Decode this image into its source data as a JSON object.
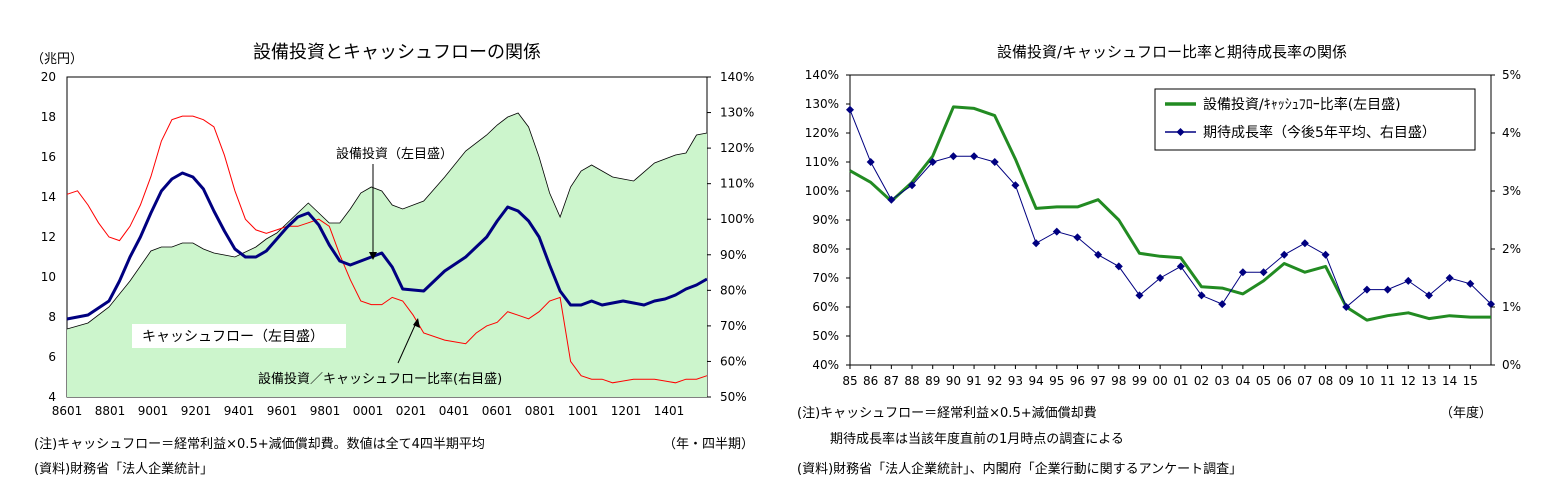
{
  "left": {
    "title": "設備投資とキャッシュフローの関係",
    "left_unit": "（兆円）",
    "note": "(注)キャッシュフロー＝経常利益×0.5+減価償却費。数値は全て4四半期平均",
    "source": "(資料)財務省「法人企業統計」",
    "xaxis_unit": "（年・四半期）",
    "labels": {
      "capex": "設備投資（左目盛）",
      "cashflow": "キャッシュフロー（左目盛）",
      "ratio": "設備投資／キャッシュフロー比率(右目盛)"
    }
  },
  "right": {
    "title": "設備投資/キャッシュフロー比率と期待成長率の関係",
    "note1": "(注)キャッシュフロー＝経常利益×0.5+減価償却費",
    "note2": "期待成長率は当該年度直前の1月時点の調査による",
    "source": "(資料)財務省「法人企業統計」、内閣府「企業行動に関するアンケート調査」",
    "xaxis_unit": "（年度）",
    "legend": {
      "ratio": "設備投資/ｷｬｯｼｭﾌﾛｰ比率(左目盛)",
      "growth": "期待成長率（今後5年平均、右目盛）"
    }
  },
  "chart_data": [
    {
      "type": "area",
      "title": "設備投資とキャッシュフローの関係",
      "x_ticks": [
        "8601",
        "8801",
        "9001",
        "9201",
        "9401",
        "9601",
        "9801",
        "0001",
        "0201",
        "0401",
        "0601",
        "0801",
        "1001",
        "1201",
        "1401"
      ],
      "x_range": [
        1986.0,
        2016.5
      ],
      "ylim_left": [
        4,
        20
      ],
      "y_ticks_left": [
        "20",
        "18",
        "16",
        "14",
        "12",
        "10",
        "8",
        "6",
        "4"
      ],
      "ylim_right": [
        50,
        140
      ],
      "y_ticks_right": [
        "140%",
        "130%",
        "120%",
        "110%",
        "100%",
        "90%",
        "80%",
        "70%",
        "60%",
        "50%"
      ],
      "series": [
        {
          "name": "キャッシュフロー（左目盛）",
          "type": "area",
          "axis": "left",
          "color": "#ccf5cc",
          "x": [
            1986.0,
            1987.0,
            1988.0,
            1989.0,
            1990.0,
            1990.5,
            1991.0,
            1991.5,
            1992.0,
            1992.5,
            1993.0,
            1994.0,
            1995.0,
            1995.5,
            1996.0,
            1997.0,
            1997.5,
            1998.0,
            1998.5,
            1999.0,
            1999.5,
            2000.0,
            2000.5,
            2001.0,
            2001.5,
            2002.0,
            2003.0,
            2004.0,
            2005.0,
            2006.0,
            2006.5,
            2007.0,
            2007.5,
            2008.0,
            2008.5,
            2009.0,
            2009.5,
            2010.0,
            2010.5,
            2011.0,
            2012.0,
            2012.5,
            2013.0,
            2014.0,
            2015.0,
            2015.5,
            2016.0,
            2016.5
          ],
          "values": [
            7.4,
            7.7,
            8.5,
            9.8,
            11.3,
            11.5,
            11.5,
            11.7,
            11.7,
            11.4,
            11.2,
            11.0,
            11.5,
            11.9,
            12.2,
            13.2,
            13.7,
            13.2,
            12.7,
            12.7,
            13.4,
            14.2,
            14.5,
            14.3,
            13.6,
            13.4,
            13.8,
            15.0,
            16.3,
            17.1,
            17.6,
            18.0,
            18.2,
            17.5,
            16.0,
            14.2,
            13.0,
            14.5,
            15.3,
            15.6,
            15.0,
            14.9,
            14.8,
            15.7,
            16.1,
            16.2,
            17.1,
            17.2
          ]
        },
        {
          "name": "設備投資（左目盛）",
          "type": "line",
          "axis": "left",
          "color": "#000080",
          "x": [
            1986.0,
            1987.0,
            1988.0,
            1988.5,
            1989.0,
            1989.5,
            1990.0,
            1990.5,
            1991.0,
            1991.5,
            1992.0,
            1992.5,
            1993.0,
            1993.5,
            1994.0,
            1994.5,
            1995.0,
            1995.5,
            1996.0,
            1996.5,
            1997.0,
            1997.5,
            1998.0,
            1998.5,
            1999.0,
            1999.5,
            2000.0,
            2000.5,
            2001.0,
            2001.5,
            2002.0,
            2003.0,
            2004.0,
            2005.0,
            2005.5,
            2006.0,
            2006.5,
            2007.0,
            2007.5,
            2008.0,
            2008.5,
            2009.0,
            2009.5,
            2010.0,
            2010.5,
            2011.0,
            2011.5,
            2012.0,
            2012.5,
            2013.0,
            2013.5,
            2014.0,
            2014.5,
            2015.0,
            2015.5,
            2016.0,
            2016.5
          ],
          "values": [
            7.9,
            8.1,
            8.8,
            9.8,
            11.0,
            12.0,
            13.2,
            14.3,
            14.9,
            15.2,
            15.0,
            14.4,
            13.3,
            12.3,
            11.4,
            11.0,
            11.0,
            11.3,
            11.9,
            12.5,
            13.0,
            13.2,
            12.6,
            11.6,
            10.8,
            10.6,
            10.8,
            11.0,
            11.2,
            10.5,
            9.4,
            9.3,
            10.3,
            11.0,
            11.5,
            12.0,
            12.8,
            13.5,
            13.3,
            12.8,
            12.0,
            10.6,
            9.3,
            8.6,
            8.6,
            8.8,
            8.6,
            8.7,
            8.8,
            8.7,
            8.6,
            8.8,
            8.9,
            9.1,
            9.4,
            9.6,
            9.9
          ]
        },
        {
          "name": "設備投資／キャッシュフロー比率(右目盛)",
          "type": "line",
          "axis": "right",
          "color": "#ff0000",
          "x": [
            1986.0,
            1986.5,
            1987.0,
            1987.5,
            1988.0,
            1988.5,
            1989.0,
            1989.5,
            1990.0,
            1990.5,
            1991.0,
            1991.5,
            1992.0,
            1992.5,
            1993.0,
            1993.5,
            1994.0,
            1994.5,
            1995.0,
            1995.5,
            1996.0,
            1996.5,
            1997.0,
            1997.5,
            1998.0,
            1998.5,
            1999.0,
            1999.5,
            2000.0,
            2000.5,
            2001.0,
            2001.5,
            2002.0,
            2002.5,
            2003.0,
            2004.0,
            2005.0,
            2005.5,
            2006.0,
            2006.5,
            2007.0,
            2007.5,
            2008.0,
            2008.5,
            2009.0,
            2009.5,
            2010.0,
            2010.5,
            2011.0,
            2011.5,
            2012.0,
            2013.0,
            2014.0,
            2015.0,
            2015.5,
            2016.0,
            2016.5
          ],
          "values": [
            107,
            108,
            104,
            99,
            95,
            94,
            98,
            104,
            112,
            122,
            128,
            129,
            129,
            128,
            126,
            118,
            108,
            100,
            97,
            96,
            97,
            98,
            98,
            99,
            100,
            98,
            90,
            83,
            77,
            76,
            76,
            78,
            77,
            73,
            68,
            66,
            65,
            68,
            70,
            71,
            74,
            73,
            72,
            74,
            77,
            78,
            60,
            56,
            55,
            55,
            54,
            55,
            55,
            54,
            55,
            55,
            56
          ]
        }
      ]
    },
    {
      "type": "line",
      "title": "設備投資/キャッシュフロー比率と期待成長率の関係",
      "categories": [
        "85",
        "86",
        "87",
        "88",
        "89",
        "90",
        "91",
        "92",
        "93",
        "94",
        "95",
        "96",
        "97",
        "98",
        "99",
        "00",
        "01",
        "02",
        "03",
        "04",
        "05",
        "06",
        "07",
        "08",
        "09",
        "10",
        "11",
        "12",
        "13",
        "14",
        "15"
      ],
      "ylim_left": [
        40,
        140
      ],
      "y_ticks_left": [
        "140%",
        "130%",
        "120%",
        "110%",
        "100%",
        "90%",
        "80%",
        "70%",
        "60%",
        "50%",
        "40%"
      ],
      "ylim_right": [
        0,
        5
      ],
      "y_ticks_right": [
        "5%",
        "4%",
        "3%",
        "2%",
        "1%",
        "0%"
      ],
      "series": [
        {
          "name": "設備投資/ｷｬｯｼｭﾌﾛｰ比率(左目盛)",
          "axis": "left",
          "color": "#228b22",
          "x": [
            0,
            1,
            2,
            3,
            4,
            5,
            6,
            7,
            8,
            9,
            10,
            11,
            12,
            13,
            14,
            15,
            16,
            17,
            18,
            19,
            20,
            21,
            22,
            23,
            24,
            25,
            26,
            27,
            28,
            29,
            30,
            31
          ],
          "values": [
            107,
            103,
            96.5,
            103,
            112,
            129,
            128.5,
            126,
            111,
            94,
            94.5,
            94.5,
            97,
            90,
            78.5,
            77.5,
            77,
            67,
            66.5,
            64.5,
            69,
            75,
            72,
            74,
            60,
            55.5,
            57,
            58,
            56,
            57,
            56.5,
            56.5
          ]
        },
        {
          "name": "期待成長率（今後5年平均、右目盛）",
          "axis": "right",
          "color": "#000080",
          "x": [
            0,
            1,
            2,
            3,
            4,
            5,
            6,
            7,
            8,
            9,
            10,
            11,
            12,
            13,
            14,
            15,
            16,
            17,
            18,
            19,
            20,
            21,
            22,
            23,
            24,
            25,
            26,
            27,
            28,
            29,
            30,
            31
          ],
          "values": [
            4.4,
            3.5,
            2.85,
            3.1,
            3.5,
            3.6,
            3.6,
            3.5,
            3.1,
            2.1,
            2.3,
            2.2,
            1.9,
            1.7,
            1.2,
            1.5,
            1.7,
            1.2,
            1.05,
            1.6,
            1.6,
            1.9,
            2.1,
            1.9,
            1.0,
            1.3,
            1.3,
            1.45,
            1.2,
            1.5,
            1.4,
            1.05
          ]
        }
      ]
    }
  ]
}
